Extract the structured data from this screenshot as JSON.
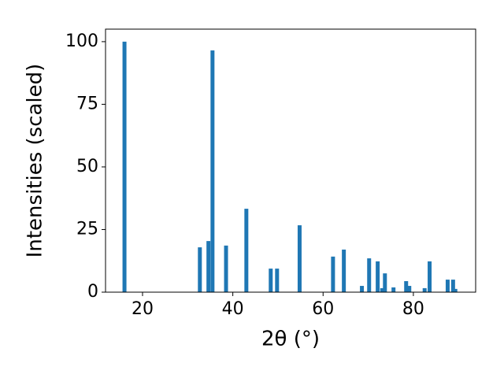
{
  "chart_data": {
    "type": "bar",
    "xlabel": "2θ (°)",
    "ylabel": "Intensities (scaled)",
    "x": [
      16.0,
      32.7,
      34.6,
      35.5,
      38.5,
      43.0,
      48.4,
      49.8,
      54.8,
      62.2,
      64.6,
      68.6,
      70.2,
      72.1,
      73.1,
      73.7,
      75.6,
      78.4,
      79.1,
      82.5,
      83.6,
      87.6,
      88.8,
      89.3
    ],
    "values": [
      100,
      17.9,
      20.4,
      96.5,
      18.6,
      33.3,
      9.4,
      9.4,
      26.7,
      14.2,
      17.0,
      2.5,
      13.5,
      12.3,
      1.6,
      7.5,
      1.9,
      4.4,
      2.5,
      1.6,
      12.3,
      5.0,
      5.0,
      1.3
    ],
    "color": "#1f77b4",
    "xlim": [
      11.8,
      93.8
    ],
    "xticks": [
      20,
      40,
      60,
      80
    ],
    "ylim": [
      0,
      105
    ],
    "yticks": [
      0,
      25,
      50,
      75,
      100
    ],
    "grid": false
  }
}
